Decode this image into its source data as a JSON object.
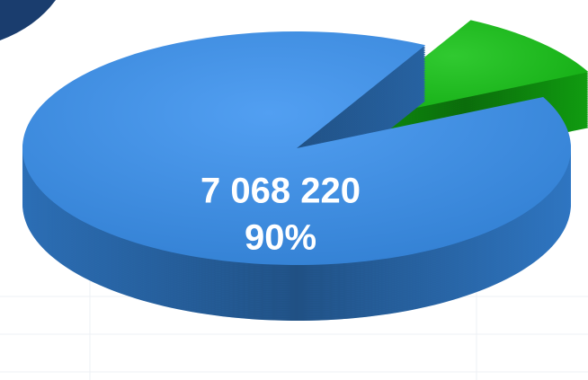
{
  "chart_data": {
    "type": "pie",
    "values": [
      90,
      10
    ],
    "value_labels": [
      "90%",
      null
    ],
    "amounts": [
      7068220,
      785358
    ],
    "amount_labels": [
      "7 068 220",
      null
    ],
    "colors": [
      "#3a92f0",
      "#14c214"
    ]
  }
}
